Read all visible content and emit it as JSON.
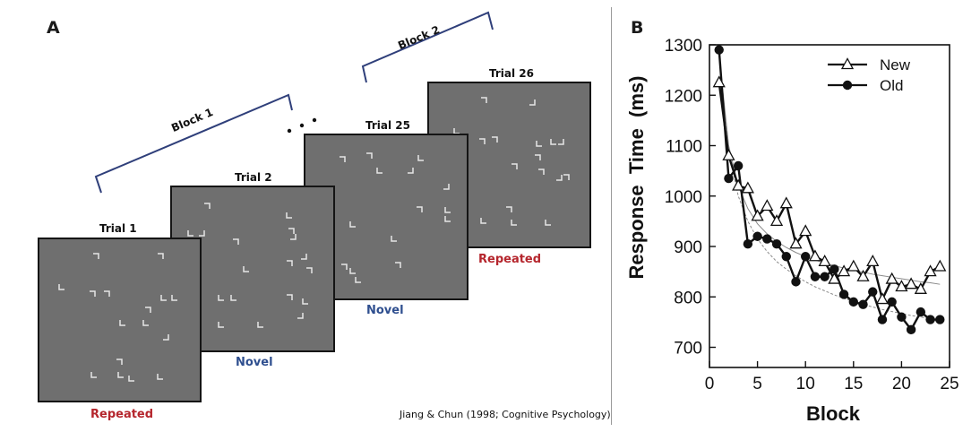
{
  "panel_a": {
    "letter": "A",
    "blocks": [
      "Block 1",
      "Block 2"
    ],
    "ellipsis": "• • •",
    "trials": [
      {
        "label": "Trial 1",
        "condition": "Repeated",
        "condition_color": "#b5262d"
      },
      {
        "label": "Trial 2",
        "condition": "Novel",
        "condition_color": "#2f4f8f"
      },
      {
        "label": "Trial 25",
        "condition": "Novel",
        "condition_color": "#2f4f8f"
      },
      {
        "label": "Trial 26",
        "condition": "Repeated",
        "condition_color": "#b5262d"
      }
    ],
    "citation": "Jiang & Chun (1998; Cognitive Psychology)"
  },
  "panel_b": {
    "letter": "B"
  },
  "chart_data": {
    "type": "line",
    "title": "",
    "xlabel": "Block",
    "ylabel": "Response  Time  (ms)",
    "xlim": [
      0,
      25
    ],
    "ylim": [
      660,
      1300
    ],
    "xticks": [
      0,
      5,
      10,
      15,
      20,
      25
    ],
    "yticks": [
      700,
      800,
      900,
      1000,
      1100,
      1200,
      1300
    ],
    "legend_position": "top-right",
    "series": [
      {
        "name": "New",
        "marker": "open-triangle",
        "x": [
          1,
          2,
          3,
          4,
          5,
          6,
          7,
          8,
          9,
          10,
          11,
          12,
          13,
          14,
          15,
          16,
          17,
          18,
          19,
          20,
          21,
          22,
          23,
          24
        ],
        "values": [
          1225,
          1080,
          1020,
          1015,
          960,
          980,
          950,
          985,
          905,
          930,
          880,
          870,
          835,
          850,
          860,
          840,
          870,
          795,
          835,
          820,
          825,
          815,
          850,
          860
        ],
        "fit": [
          1280,
          1100,
          1020,
          975,
          945,
          925,
          910,
          898,
          888,
          880,
          873,
          867,
          862,
          857,
          853,
          849,
          845,
          842,
          839,
          836,
          833,
          830,
          828,
          825
        ]
      },
      {
        "name": "Old",
        "marker": "filled-circle",
        "x": [
          1,
          2,
          3,
          4,
          5,
          6,
          7,
          8,
          9,
          10,
          11,
          12,
          13,
          14,
          15,
          16,
          17,
          18,
          19,
          20,
          21,
          22,
          23,
          24
        ],
        "values": [
          1290,
          1035,
          1060,
          905,
          920,
          915,
          905,
          880,
          830,
          880,
          840,
          840,
          855,
          805,
          790,
          785,
          810,
          755,
          790,
          760,
          735,
          770,
          755,
          755
        ],
        "fit": [
          1280,
          1090,
          1000,
          950,
          915,
          890,
          870,
          855,
          842,
          830,
          820,
          812,
          804,
          797,
          791,
          785,
          780,
          775,
          771,
          767,
          763,
          760,
          757,
          754
        ]
      }
    ]
  }
}
